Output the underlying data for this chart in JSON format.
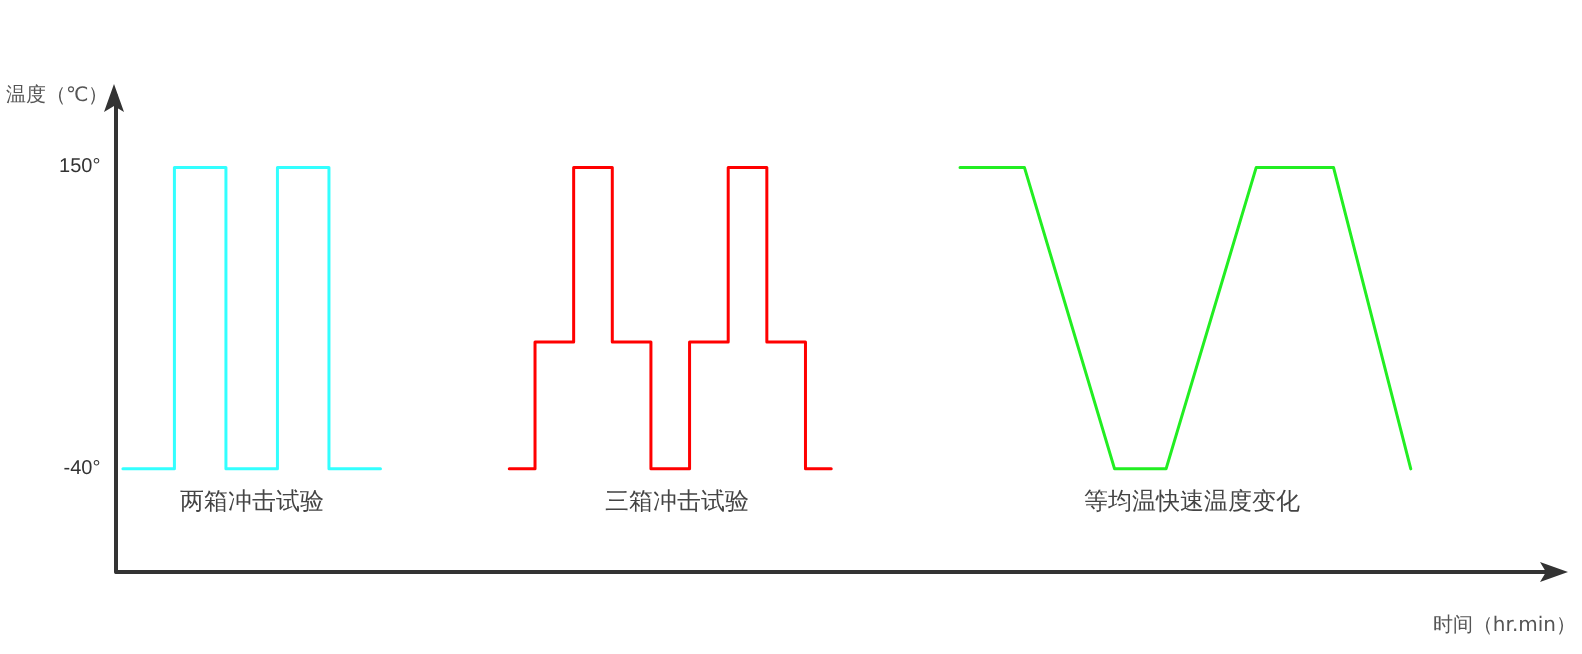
{
  "chart_data": {
    "type": "step",
    "xlabel": "时间（hr.min）",
    "ylabel": "温度（℃）",
    "categories": [
      null,
      null,
      null,
      null,
      null,
      null,
      null,
      null,
      null,
      null,
      null,
      null,
      null,
      null,
      null,
      null,
      null,
      null,
      null,
      null,
      null,
      null,
      null,
      null,
      null,
      null,
      null,
      null,
      null,
      null,
      null,
      null,
      null,
      null,
      null,
      null,
      null,
      null,
      null,
      null,
      null,
      null,
      null,
      null,
      null,
      null,
      null,
      null,
      null,
      null,
      null,
      null,
      null,
      null,
      null,
      null,
      null,
      null,
      null,
      null,
      null,
      null,
      null,
      null,
      null,
      null,
      null,
      null,
      null,
      null,
      null,
      null,
      null,
      null,
      null,
      null,
      null,
      null,
      null,
      null,
      null,
      null,
      null,
      null,
      null,
      null,
      null,
      null,
      null,
      null,
      null,
      null,
      null,
      null,
      null,
      null,
      null,
      null,
      null,
      null,
      null,
      null,
      null,
      null,
      null,
      null,
      null,
      null,
      null,
      null,
      null
    ],
    "ylim": [
      -105,
      195
    ],
    "yticks": [
      {
        "value": 150,
        "label": "150°"
      },
      {
        "value": -40,
        "label": "-40°"
      }
    ],
    "tick_labels": "y",
    "line_style": "solid",
    "series": [
      {
        "name": "两箱冲击试验",
        "color": "#33ffff",
        "values": [
          -40,
          null,
          null,
          null,
          150,
          null,
          null,
          null,
          -40,
          null,
          null,
          null,
          150,
          null,
          null,
          null,
          -40,
          null,
          null,
          null,
          -40,
          null,
          null,
          null,
          null,
          null,
          null,
          null,
          null,
          null,
          null,
          null,
          null,
          null,
          null,
          null,
          null,
          null,
          null,
          null,
          null,
          null,
          null,
          null,
          null,
          null,
          null,
          null,
          null,
          null,
          null,
          null,
          null,
          null,
          null,
          null,
          null,
          null,
          null,
          null,
          null,
          null,
          null,
          null,
          null,
          null,
          null,
          null,
          null,
          null,
          null,
          null,
          null,
          null,
          null,
          null,
          null,
          null,
          null,
          null,
          null,
          null,
          null,
          null,
          null,
          null,
          null,
          null,
          null,
          null,
          null,
          null,
          null,
          null,
          null,
          null,
          null,
          null,
          null,
          null,
          null,
          null,
          null,
          null,
          null,
          null,
          null,
          null,
          null,
          null,
          null
        ]
      },
      {
        "name": "三箱冲击试验",
        "color": "#ff0000",
        "values": [
          null,
          null,
          null,
          null,
          null,
          null,
          null,
          null,
          null,
          null,
          null,
          null,
          null,
          null,
          null,
          null,
          null,
          null,
          null,
          null,
          null,
          null,
          null,
          null,
          null,
          null,
          null,
          null,
          null,
          null,
          -40,
          null,
          40,
          null,
          null,
          150,
          null,
          null,
          40,
          null,
          null,
          -40,
          null,
          null,
          40,
          null,
          null,
          150,
          null,
          null,
          40,
          null,
          null,
          -40,
          null,
          -40,
          null,
          null,
          null,
          null,
          null,
          null,
          null,
          null,
          null,
          null,
          null,
          null,
          null,
          null,
          null,
          null,
          null,
          null,
          null,
          null,
          null,
          null,
          null,
          null,
          null,
          null,
          null,
          null,
          null,
          null,
          null,
          null,
          null,
          null,
          null,
          null,
          null,
          null,
          null,
          null,
          null,
          null,
          null,
          null,
          null,
          null,
          null,
          null,
          null,
          null,
          null,
          null,
          null,
          null,
          null
        ]
      },
      {
        "name": "等均温快速温度变化",
        "type": "line",
        "color": "#22ee22",
        "values": [
          null,
          null,
          null,
          null,
          null,
          null,
          null,
          null,
          null,
          null,
          null,
          null,
          null,
          null,
          null,
          null,
          null,
          null,
          null,
          null,
          null,
          null,
          null,
          null,
          null,
          null,
          null,
          null,
          null,
          null,
          null,
          null,
          null,
          null,
          null,
          null,
          null,
          null,
          null,
          null,
          null,
          null,
          null,
          null,
          null,
          null,
          null,
          null,
          null,
          null,
          null,
          null,
          null,
          null,
          null,
          null,
          null,
          null,
          null,
          null,
          null,
          null,
          null,
          null,
          null,
          150,
          null,
          null,
          null,
          null,
          150,
          null,
          null,
          null,
          null,
          null,
          null,
          -40,
          null,
          null,
          null,
          -40,
          null,
          null,
          null,
          null,
          null,
          null,
          150,
          null,
          null,
          null,
          null,
          null,
          150,
          null,
          null,
          null,
          null,
          null,
          -40,
          null,
          null,
          null,
          null,
          null,
          null,
          null,
          null,
          null,
          null
        ]
      }
    ]
  }
}
